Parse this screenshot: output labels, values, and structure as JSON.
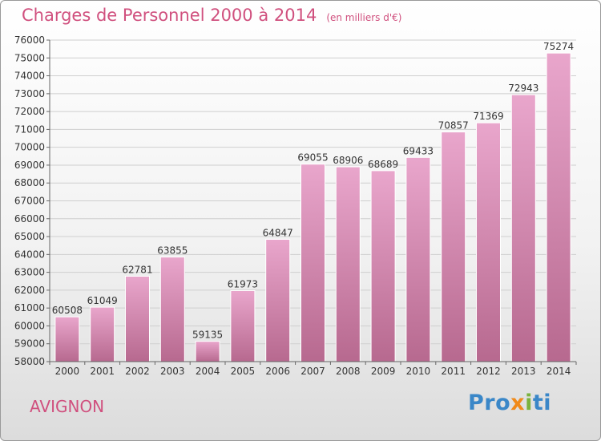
{
  "header": {
    "title": "Charges de Personnel 2000 à 2014",
    "subtitle": "(en milliers d'€)"
  },
  "footer": {
    "city": "AVIGNON",
    "logo_parts": [
      "Pro",
      "x",
      "i",
      "ti"
    ]
  },
  "colors": {
    "bar_top": "#e9a6cc",
    "bar_bottom": "#b7698f",
    "title": "#d0507e"
  },
  "chart_data": {
    "type": "bar",
    "title": "Charges de Personnel 2000 à 2014",
    "subtitle": "(en milliers d'€)",
    "categories": [
      "2000",
      "2001",
      "2002",
      "2003",
      "2004",
      "2005",
      "2006",
      "2007",
      "2008",
      "2009",
      "2010",
      "2011",
      "2012",
      "2013",
      "2014"
    ],
    "values": [
      60508,
      61049,
      62781,
      63855,
      59135,
      61973,
      64847,
      69055,
      68906,
      68689,
      69433,
      70857,
      71369,
      72943,
      75274
    ],
    "ylim": [
      58000,
      76000
    ],
    "yticks": [
      58000,
      59000,
      60000,
      61000,
      62000,
      63000,
      64000,
      65000,
      66000,
      67000,
      68000,
      69000,
      70000,
      71000,
      72000,
      73000,
      74000,
      75000,
      76000
    ],
    "grid": true,
    "data_labels": true
  }
}
